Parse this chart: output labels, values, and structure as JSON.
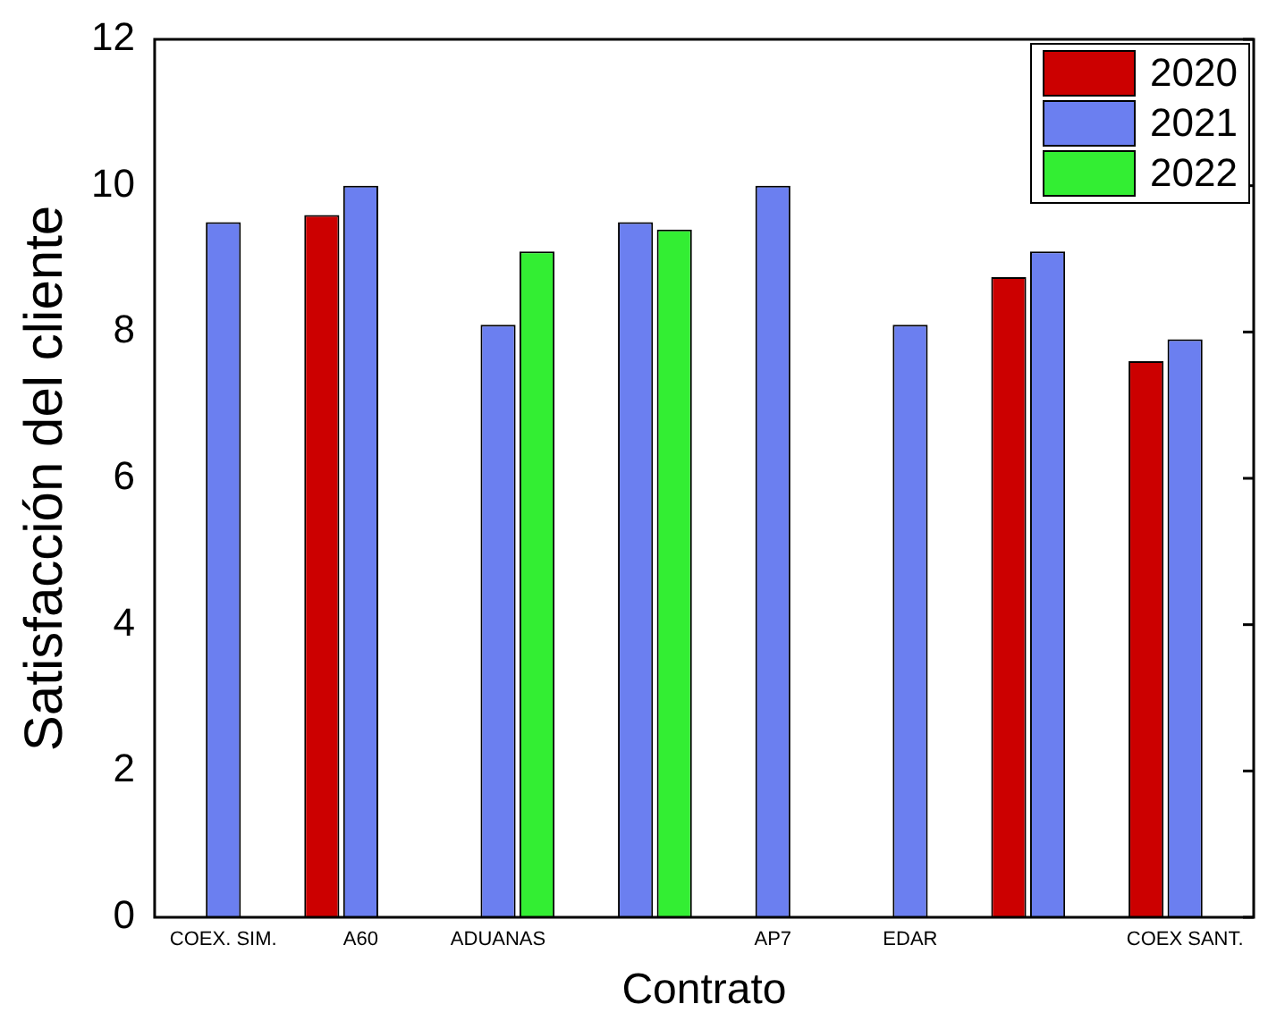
{
  "chart_data": {
    "type": "bar",
    "xlabel": "Contrato",
    "ylabel": "Satisfacción del cliente",
    "categories": [
      "COEX. SIM.",
      "A60",
      "ADUANAS",
      null,
      "AP7",
      "EDAR",
      null,
      "COEX SANT."
    ],
    "series": [
      {
        "name": "2020",
        "color": "#cc0000",
        "values": [
          null,
          9.6,
          null,
          null,
          null,
          null,
          8.75,
          7.6
        ]
      },
      {
        "name": "2021",
        "color": "#6b7ff0",
        "values": [
          9.5,
          10,
          8.1,
          9.5,
          10,
          8.1,
          9.1,
          7.9
        ]
      },
      {
        "name": "2022",
        "color": "#33ee33",
        "values": [
          null,
          null,
          9.1,
          9.4,
          null,
          null,
          null,
          null
        ]
      }
    ],
    "ylim": [
      0,
      12
    ],
    "yticks": [
      0,
      2,
      4,
      6,
      8,
      10,
      12
    ],
    "grid": false,
    "legend": "top right"
  }
}
